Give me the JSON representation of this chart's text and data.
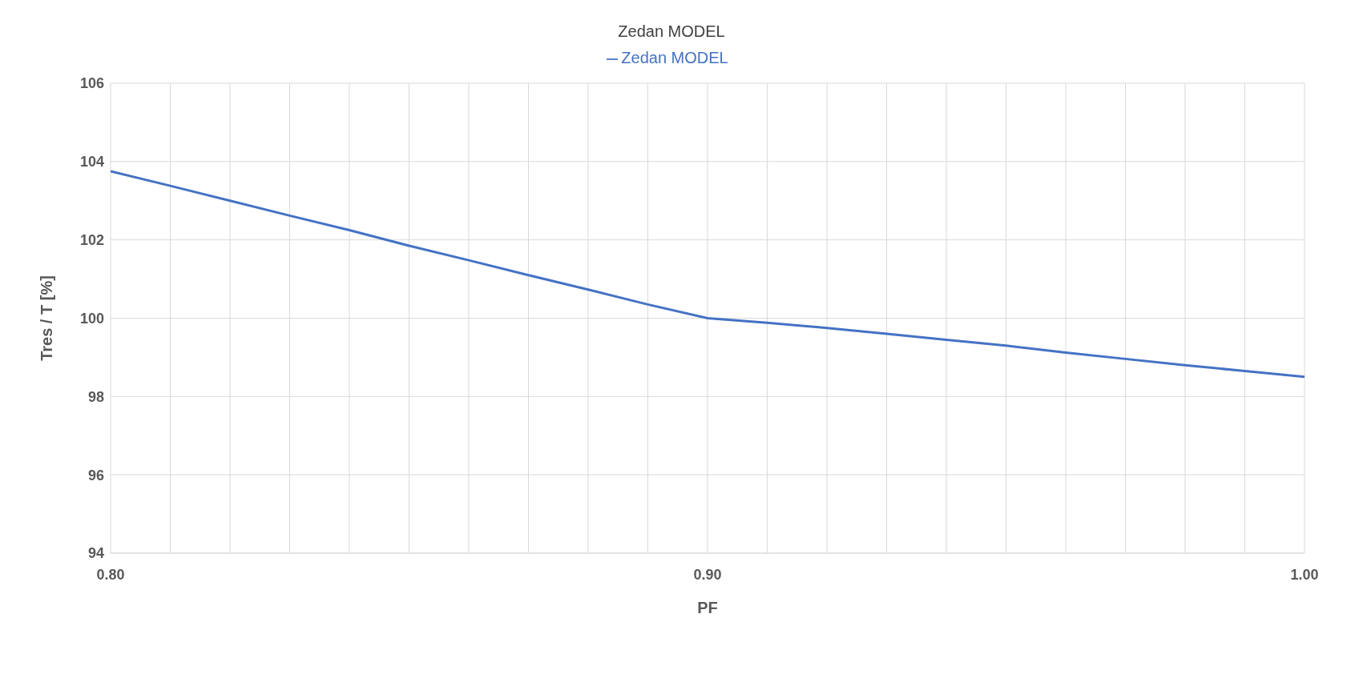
{
  "chart_data": {
    "type": "line",
    "title": "Zedan MODEL",
    "xlabel": "PF",
    "ylabel": "Tres / T [%]",
    "x": [
      0.8,
      0.81,
      0.82,
      0.83,
      0.84,
      0.85,
      0.86,
      0.87,
      0.88,
      0.89,
      0.9,
      0.91,
      0.92,
      0.93,
      0.94,
      0.95,
      0.96,
      0.97,
      0.98,
      0.99,
      1.0
    ],
    "series": [
      {
        "name": "Zedan MODEL",
        "color": "#4472c4",
        "values": [
          103.75,
          103.38,
          103.0,
          102.62,
          102.25,
          101.85,
          101.48,
          101.1,
          100.73,
          100.35,
          100.0,
          99.88,
          99.75,
          99.6,
          99.45,
          99.3,
          99.12,
          98.96,
          98.8,
          98.65,
          98.5
        ]
      }
    ],
    "xlim": [
      0.8,
      1.0
    ],
    "xticks": [
      {
        "value": 0.8,
        "label": "0.80"
      },
      {
        "value": 0.81,
        "label": null
      },
      {
        "value": 0.82,
        "label": null
      },
      {
        "value": 0.83,
        "label": null
      },
      {
        "value": 0.84,
        "label": null
      },
      {
        "value": 0.85,
        "label": null
      },
      {
        "value": 0.86,
        "label": null
      },
      {
        "value": 0.87,
        "label": null
      },
      {
        "value": 0.88,
        "label": null
      },
      {
        "value": 0.89,
        "label": null
      },
      {
        "value": 0.9,
        "label": "0.90"
      },
      {
        "value": 0.91,
        "label": null
      },
      {
        "value": 0.92,
        "label": null
      },
      {
        "value": 0.93,
        "label": null
      },
      {
        "value": 0.94,
        "label": null
      },
      {
        "value": 0.95,
        "label": null
      },
      {
        "value": 0.96,
        "label": null
      },
      {
        "value": 0.97,
        "label": null
      },
      {
        "value": 0.98,
        "label": null
      },
      {
        "value": 0.99,
        "label": null
      },
      {
        "value": 1.0,
        "label": "1.00"
      }
    ],
    "ylim": [
      94,
      106
    ],
    "yticks": [
      94,
      96,
      98,
      100,
      102,
      104,
      106
    ],
    "grid": true,
    "legend": "top",
    "marker": "none",
    "line_style": "solid"
  }
}
